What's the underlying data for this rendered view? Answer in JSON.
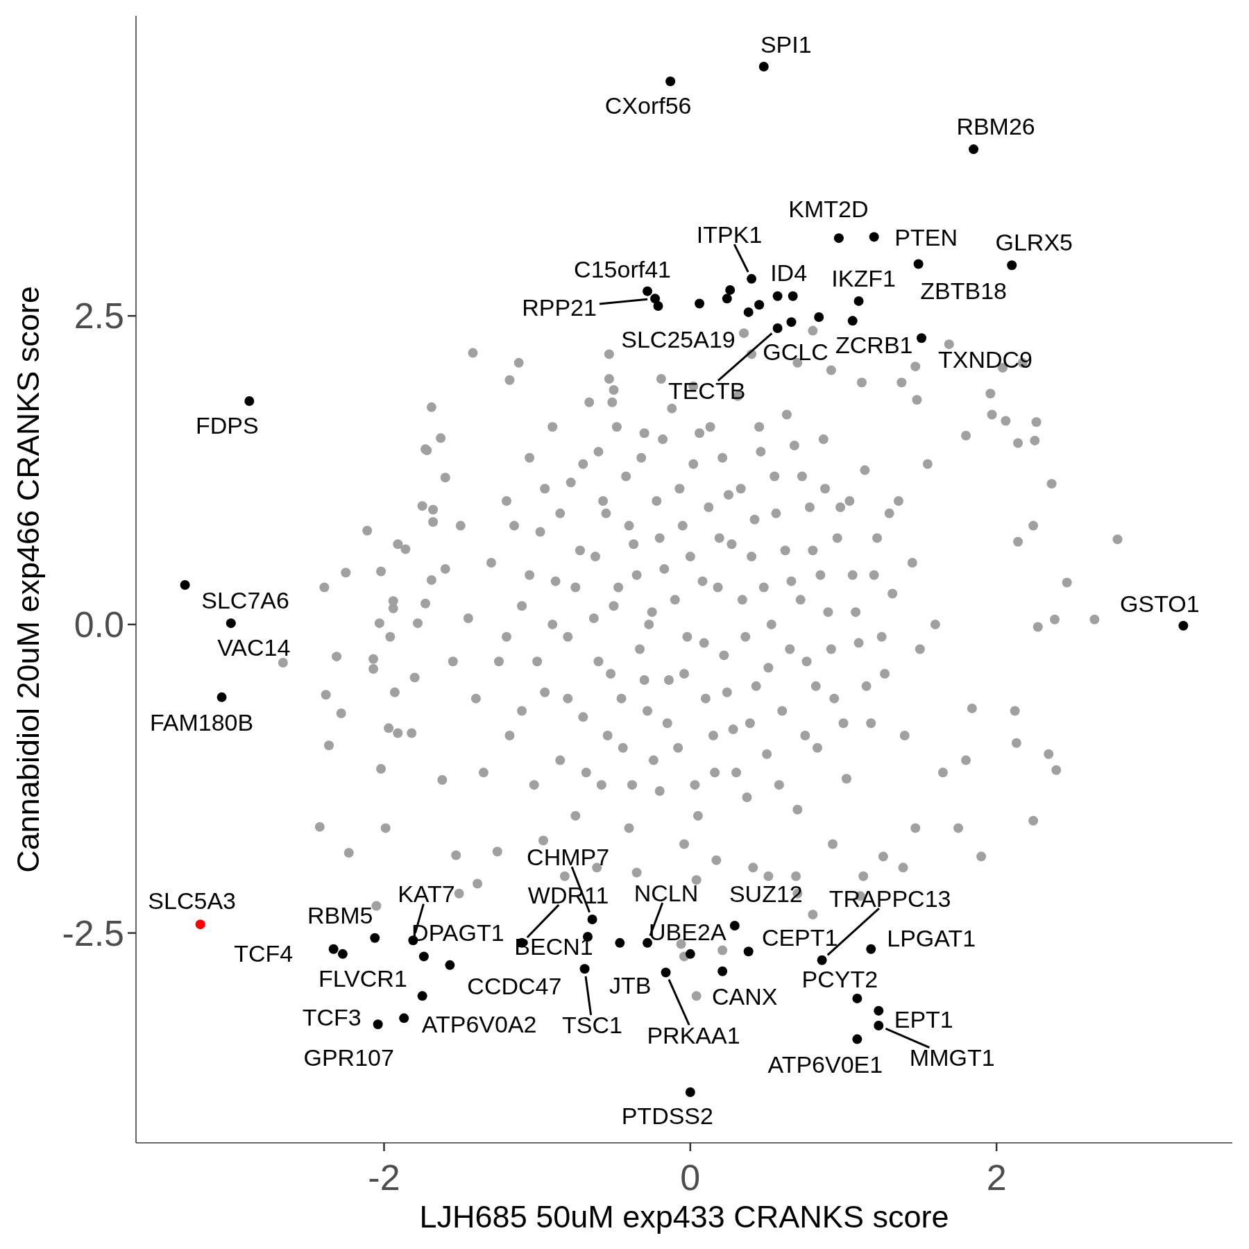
{
  "chart_data": {
    "type": "scatter",
    "xlabel": "LJH685 50uM exp433 CRANKS score",
    "ylabel": "Cannabidiol 20uM exp466 CRANKS score",
    "xlim": [
      -3.62,
      3.54
    ],
    "ylim": [
      -4.2,
      4.93
    ],
    "xticks": [
      -2,
      0,
      2
    ],
    "yticks": [
      -2.5,
      {
        "value": 0,
        "label": "0.0"
      },
      2.5
    ],
    "marker": "circle",
    "series": [
      {
        "color": "#a0a0a0",
        "x": [
          -1.42,
          -1.12,
          -1.69,
          -0.53,
          -0.51,
          -0.19,
          0.02,
          0.35,
          0.4,
          0.7,
          0.92,
          1.47,
          2.04,
          2.17,
          1.96,
          1.97,
          2.26,
          2.25,
          2.14,
          1.8,
          2.36,
          2.79,
          2.24,
          2.14,
          2.46,
          2.64,
          2.38,
          2.27,
          2.12,
          2.13,
          2.34,
          2.39,
          2.24,
          1.9,
          1.75,
          1.65,
          1.8,
          1.84,
          -2.11,
          -2.25,
          -2.39,
          -2.02,
          -2.66,
          -2.31,
          -2.38,
          -2.36,
          -2.02,
          -2.42,
          -2.23,
          -1.99,
          -1.53,
          -1.39,
          -1.94,
          -1.75,
          -1.68,
          -1.6,
          -1.72,
          -1.86,
          -1.96,
          -1.8,
          -1.91,
          -1.62,
          -0.96,
          -0.82,
          -0.61,
          -0.35,
          -0.04,
          0.04,
          0.17,
          0.41,
          0.69,
          0.8,
          1.11,
          0.93,
          1.47,
          1.26,
          -0.06,
          0.21,
          0.04,
          1.69,
          0.8,
          -1.18,
          -0.53,
          1.12,
          2.06,
          1.48,
          1.38,
          -1.63,
          -1.73,
          -1.91,
          -1.94,
          -2.07,
          -2.07,
          -2.28,
          -1.97,
          -1.82,
          -1.93,
          -2.03,
          -1.78,
          -1.73,
          -1.69,
          -1.68,
          -2.05,
          -1.51,
          -1.26,
          1.39,
          1.13,
          0.7,
          0.51,
          -0.04,
          -1.3,
          -1.25,
          -1.2,
          -1.18,
          -1.1,
          -1.05,
          -1.02,
          -0.98,
          -0.95,
          -0.9,
          -0.88,
          -0.85,
          -0.8,
          -0.78,
          -0.75,
          -0.72,
          -0.7,
          -0.66,
          -0.63,
          -0.6,
          -0.58,
          -0.55,
          -0.52,
          -0.5,
          -0.47,
          -0.44,
          -0.42,
          -0.4,
          -0.37,
          -0.33,
          -0.3,
          -0.28,
          -0.25,
          -0.22,
          -0.2,
          -0.17,
          -0.14,
          -0.12,
          -0.08,
          -0.05,
          -0.02,
          0.02,
          0.05,
          0.08,
          0.1,
          0.13,
          0.16,
          0.19,
          0.22,
          0.25,
          0.28,
          0.31,
          0.34,
          0.37,
          0.4,
          0.43,
          0.46,
          0.5,
          0.53,
          0.56,
          0.6,
          0.63,
          0.66,
          0.7,
          0.73,
          0.76,
          0.8,
          0.83,
          0.87,
          0.9,
          0.94,
          0.98,
          1.02,
          1.06,
          1.1,
          1.14,
          1.18,
          1.22,
          1.27,
          1.32,
          1.36,
          1.4,
          1.45,
          1.5,
          1.55,
          1.6,
          -1.45,
          -1.4,
          -1.5,
          -1.35,
          -1.55,
          -1.6,
          -0.9,
          -0.85,
          -0.8,
          -0.75,
          -0.7,
          -0.68,
          -0.62,
          -0.6,
          -0.57,
          -0.54,
          -0.5,
          -0.48,
          -0.45,
          -0.4,
          -0.38,
          -0.35,
          -0.32,
          -0.3,
          -0.27,
          -0.24,
          -0.2,
          -0.18,
          -0.15,
          -0.1,
          -0.07,
          -0.04,
          0.0,
          0.03,
          0.06,
          0.09,
          0.12,
          0.15,
          0.18,
          0.21,
          0.24,
          0.27,
          0.3,
          0.33,
          0.36,
          0.39,
          0.42,
          0.45,
          0.48,
          0.51,
          0.55,
          0.58,
          0.62,
          0.65,
          0.68,
          0.72,
          0.75,
          0.78,
          0.82,
          0.85,
          0.88,
          0.92,
          0.96,
          1.0,
          1.04,
          1.08,
          -1.0,
          -1.05,
          -0.95,
          -1.1,
          -1.15,
          -1.2,
          1.2,
          1.25,
          1.15,
          1.3
        ],
        "values": [
          2.2,
          2.12,
          1.76,
          1.99,
          1.8,
          1.99,
          1.93,
          2.36,
          2.19,
          2.12,
          2.06,
          2.09,
          2.08,
          2.12,
          1.87,
          1.7,
          1.64,
          1.49,
          1.47,
          1.53,
          1.14,
          0.69,
          0.8,
          0.67,
          0.34,
          0.04,
          0.04,
          -0.02,
          -0.7,
          -0.96,
          -1.05,
          -1.18,
          -1.59,
          -1.88,
          -1.65,
          -1.2,
          -1.1,
          -0.68,
          0.76,
          0.42,
          0.3,
          0.43,
          -0.31,
          -0.26,
          -0.57,
          -0.98,
          -1.17,
          -1.64,
          -1.85,
          -1.65,
          -1.87,
          -2.1,
          0.19,
          0.96,
          0.93,
          1.19,
          1.41,
          0.61,
          -0.1,
          -0.43,
          -0.88,
          -1.26,
          -1.75,
          -2.04,
          -1.97,
          -2.01,
          -1.78,
          -2.07,
          -1.91,
          -1.97,
          -2.04,
          -2.35,
          -2.2,
          -1.78,
          -1.65,
          -1.88,
          -2.59,
          -2.64,
          -3.01,
          2.27,
          2.38,
          1.98,
          2.19,
          1.96,
          1.65,
          1.82,
          1.96,
          1.51,
          1.42,
          0.65,
          0.13,
          -0.28,
          -0.36,
          -0.72,
          -0.84,
          -0.88,
          -0.55,
          0.01,
          0.01,
          0.17,
          0.36,
          0.83,
          -2.28,
          -2.18,
          -1.84,
          -1.97,
          -2.04,
          -2.18,
          -2.04,
          -2.69,
          0.5,
          -0.3,
          1.0,
          -0.9,
          0.15,
          1.35,
          -1.3,
          0.75,
          -0.55,
          1.6,
          0.35,
          -1.1,
          -0.1,
          1.15,
          -1.55,
          0.6,
          -0.75,
          1.8,
          0.05,
          1.4,
          -1.3,
          0.9,
          -0.4,
          1.9,
          0.3,
          -1.0,
          1.2,
          -1.65,
          0.65,
          -0.2,
          1.55,
          -0.7,
          0.1,
          1.0,
          -1.35,
          0.45,
          -0.45,
          1.75,
          -1.0,
          0.8,
          -0.1,
          1.3,
          -1.55,
          0.35,
          -0.6,
          1.6,
          -1.2,
          0.7,
          -0.25,
          1.05,
          -0.85,
          1.85,
          0.2,
          -1.4,
          0.55,
          -0.5,
          1.4,
          -1.05,
          0.0,
          0.9,
          -0.7,
          1.7,
          0.35,
          -1.5,
          1.2,
          -0.3,
          0.6,
          -1.0,
          1.5,
          0.1,
          -0.6,
          0.95,
          -1.25,
          0.4,
          -0.15,
          1.25,
          -0.8,
          0.7,
          -0.4,
          0.25,
          1.0,
          -0.9,
          0.5,
          -0.2,
          1.3,
          0.0,
          0.05,
          -0.6,
          0.8,
          -1.2,
          -0.3,
          0.45,
          0.0,
          0.9,
          -0.6,
          0.3,
          1.3,
          -1.2,
          0.55,
          -0.3,
          1.0,
          -0.9,
          0.15,
          1.6,
          -0.6,
          0.8,
          -1.3,
          0.4,
          1.35,
          -0.45,
          0.0,
          -1.1,
          0.7,
          1.5,
          -0.8,
          0.2,
          1.1,
          -0.4,
          0.55,
          -1.3,
          1.55,
          -0.15,
          0.95,
          -0.9,
          0.3,
          1.35,
          -0.55,
          0.65,
          -1.2,
          1.1,
          -0.1,
          -0.8,
          0.85,
          1.6,
          0.3,
          -0.35,
          1.2,
          -1.3,
          0.6,
          -0.2,
          1.45,
          0.2,
          -0.9,
          0.95,
          -0.5,
          0.4,
          1.1,
          -0.2,
          0.7,
          -0.8,
          1.0,
          0.1,
          -0.3,
          0.4,
          1.1,
          -0.7,
          0.8,
          -0.1,
          0.4,
          -0.1,
          -0.5,
          0.9
        ]
      },
      {
        "color": "#000000",
        "x": [
          0.48,
          -0.13,
          1.85,
          0.97,
          1.2,
          2.1,
          1.49,
          0.4,
          0.57,
          1.1,
          -0.28,
          -0.23,
          -0.21,
          0.66,
          1.06,
          1.51,
          0.57,
          0.26,
          0.06,
          0.24,
          0.38,
          0.45,
          0.67,
          0.84,
          -2.88,
          -3.3,
          -3.0,
          -3.06,
          3.22,
          -2.06,
          -2.33,
          -2.27,
          -1.81,
          -1.74,
          -1.57,
          -1.75,
          -1.87,
          -2.04,
          -0.64,
          -1.1,
          -0.67,
          -0.69,
          -0.46,
          -0.28,
          0.0,
          0.29,
          0.38,
          -0.16,
          0.21,
          0.86,
          1.09,
          1.18,
          1.23,
          1.23,
          1.09,
          0.0
        ],
        "values": [
          4.52,
          4.4,
          3.85,
          3.13,
          3.14,
          2.91,
          2.92,
          2.8,
          2.66,
          2.62,
          2.7,
          2.64,
          2.58,
          2.45,
          2.46,
          2.32,
          2.4,
          2.71,
          2.6,
          2.64,
          2.53,
          2.59,
          2.66,
          2.49,
          1.81,
          0.32,
          0.01,
          -0.59,
          -0.01,
          -2.54,
          -2.63,
          -2.67,
          -2.56,
          -2.69,
          -2.76,
          -3.01,
          -3.19,
          -3.24,
          -2.39,
          -2.58,
          -2.53,
          -2.79,
          -2.58,
          -2.58,
          -2.67,
          -2.44,
          -2.65,
          -2.82,
          -2.81,
          -2.72,
          -3.03,
          -2.63,
          -3.13,
          -3.25,
          -3.36,
          -3.79
        ]
      },
      {
        "color": "#ff0000",
        "x": [
          -3.2
        ],
        "values": [
          -2.43
        ]
      }
    ],
    "annotations": [
      {
        "text": "SPI1",
        "x": 0.48,
        "y": 4.52
      },
      {
        "text": "CXorf56",
        "x": -0.13,
        "y": 4.4
      },
      {
        "text": "RBM26",
        "x": 1.85,
        "y": 3.85
      },
      {
        "text": "KMT2D",
        "x": 0.97,
        "y": 3.13
      },
      {
        "text": "PTEN",
        "x": 1.2,
        "y": 3.14
      },
      {
        "text": "GLRX5",
        "x": 2.1,
        "y": 2.91
      },
      {
        "text": "ZBTB18",
        "x": 1.49,
        "y": 2.92
      },
      {
        "text": "ITPK1",
        "x": 0.4,
        "y": 2.8
      },
      {
        "text": "ID4",
        "x": 0.57,
        "y": 2.66
      },
      {
        "text": "IKZF1",
        "x": 1.1,
        "y": 2.62
      },
      {
        "text": "C15orf41",
        "x": -0.28,
        "y": 2.7
      },
      {
        "text": "RPP21",
        "x": -0.23,
        "y": 2.64
      },
      {
        "text": "SLC25A19",
        "x": -0.21,
        "y": 2.58
      },
      {
        "text": "GCLC",
        "x": 0.66,
        "y": 2.45
      },
      {
        "text": "ZCRB1",
        "x": 1.06,
        "y": 2.46
      },
      {
        "text": "TXNDC9",
        "x": 1.51,
        "y": 2.32
      },
      {
        "text": "TECTB",
        "x": 0.57,
        "y": 2.4
      },
      {
        "text": "FDPS",
        "x": -2.88,
        "y": 1.81
      },
      {
        "text": "SLC7A6",
        "x": -3.3,
        "y": 0.32
      },
      {
        "text": "VAC14",
        "x": -3.0,
        "y": 0.01
      },
      {
        "text": "FAM180B",
        "x": -3.06,
        "y": -0.59
      },
      {
        "text": "GSTO1",
        "x": 3.22,
        "y": -0.01
      },
      {
        "text": "SLC5A3",
        "x": -3.2,
        "y": -2.43
      },
      {
        "text": "RBM5",
        "x": -2.06,
        "y": -2.54
      },
      {
        "text": "TCF4",
        "x": -2.33,
        "y": -2.63
      },
      {
        "text": "FLVCR1",
        "x": -2.27,
        "y": -2.67
      },
      {
        "text": "KAT7",
        "x": -1.81,
        "y": -2.56
      },
      {
        "text": "DPAGT1",
        "x": -1.74,
        "y": -2.69
      },
      {
        "text": "CCDC47",
        "x": -1.57,
        "y": -2.76
      },
      {
        "text": "ATP6V0A2",
        "x": -1.75,
        "y": -3.01
      },
      {
        "text": "TCF3",
        "x": -1.87,
        "y": -3.19
      },
      {
        "text": "GPR107",
        "x": -2.04,
        "y": -3.24
      },
      {
        "text": "CHMP7",
        "x": -0.64,
        "y": -2.39
      },
      {
        "text": "WDR11",
        "x": -1.1,
        "y": -2.58
      },
      {
        "text": "BECN1",
        "x": -0.67,
        "y": -2.53
      },
      {
        "text": "TSC1",
        "x": -0.69,
        "y": -2.79
      },
      {
        "text": "JTB",
        "x": -0.46,
        "y": -2.58
      },
      {
        "text": "NCLN",
        "x": -0.28,
        "y": -2.58
      },
      {
        "text": "UBE2A",
        "x": 0.0,
        "y": -2.67
      },
      {
        "text": "SUZ12",
        "x": 0.29,
        "y": -2.44
      },
      {
        "text": "CEPT1",
        "x": 0.38,
        "y": -2.65
      },
      {
        "text": "PRKAA1",
        "x": -0.16,
        "y": -2.82
      },
      {
        "text": "CANX",
        "x": 0.21,
        "y": -2.81
      },
      {
        "text": "TRAPPC13",
        "x": 0.86,
        "y": -2.72
      },
      {
        "text": "PCYT2",
        "x": 1.09,
        "y": -3.03
      },
      {
        "text": "LPGAT1",
        "x": 1.18,
        "y": -2.63
      },
      {
        "text": "EPT1",
        "x": 1.23,
        "y": -3.13
      },
      {
        "text": "MMGT1",
        "x": 1.23,
        "y": -3.25
      },
      {
        "text": "ATP6V0E1",
        "x": 1.09,
        "y": -3.36
      },
      {
        "text": "PTDSS2",
        "x": 0.0,
        "y": -3.79
      }
    ]
  }
}
